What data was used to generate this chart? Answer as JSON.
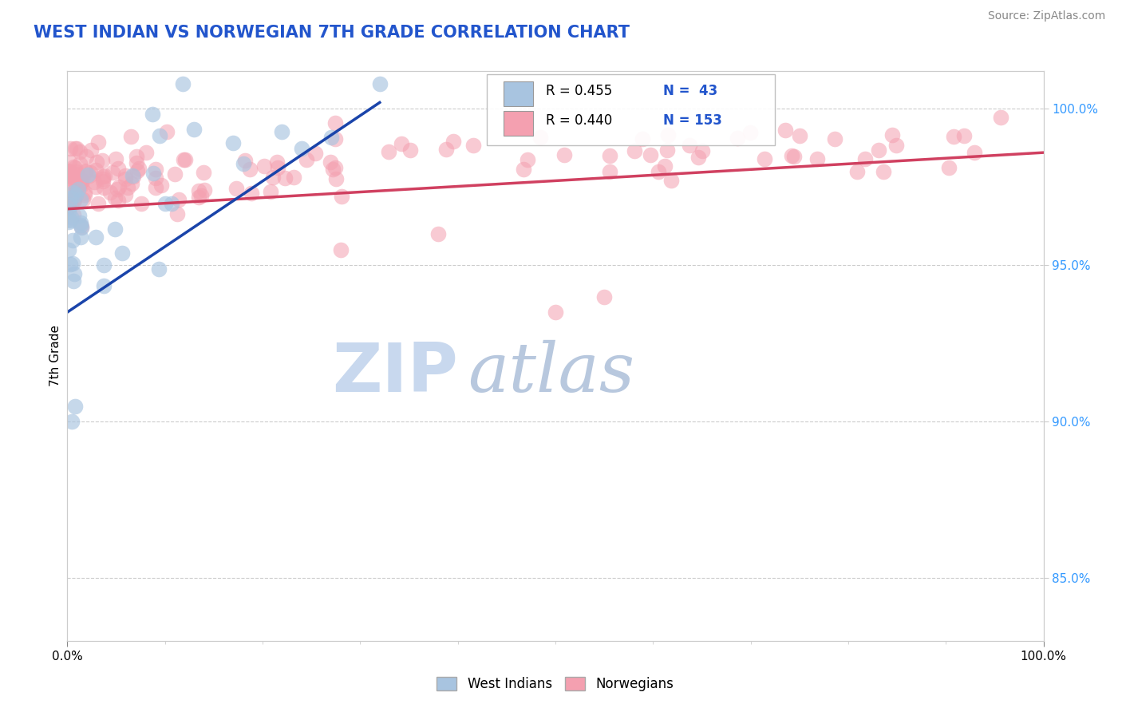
{
  "title": "WEST INDIAN VS NORWEGIAN 7TH GRADE CORRELATION CHART",
  "source": "Source: ZipAtlas.com",
  "ylabel": "7th Grade",
  "right_yticks": [
    85.0,
    90.0,
    95.0,
    100.0
  ],
  "right_ytick_labels": [
    "85.0%",
    "90.0%",
    "95.0%",
    "100.0%"
  ],
  "legend_blue_r": "R = 0.455",
  "legend_blue_n": "N =  43",
  "legend_pink_r": "R = 0.440",
  "legend_pink_n": "N = 153",
  "blue_color": "#a8c4e0",
  "pink_color": "#f4a0b0",
  "blue_line_color": "#1a44aa",
  "pink_line_color": "#d04060",
  "title_color": "#2255cc",
  "watermark_zip_color": "#c8d8ee",
  "watermark_atlas_color": "#b8c8de",
  "legend_r_color": "#2255cc",
  "legend_n_color": "#2255cc",
  "background_color": "#ffffff",
  "west_indians_label": "West Indians",
  "norwegians_label": "Norwegians",
  "ylim_min": 83.0,
  "ylim_max": 101.2,
  "xlim_min": 0.0,
  "xlim_max": 1.0,
  "blue_trend_x0": 0.0,
  "blue_trend_y0": 93.5,
  "blue_trend_x1": 0.32,
  "blue_trend_y1": 100.2,
  "pink_trend_x0": 0.0,
  "pink_trend_y0": 96.8,
  "pink_trend_x1": 1.0,
  "pink_trend_y1": 98.6
}
